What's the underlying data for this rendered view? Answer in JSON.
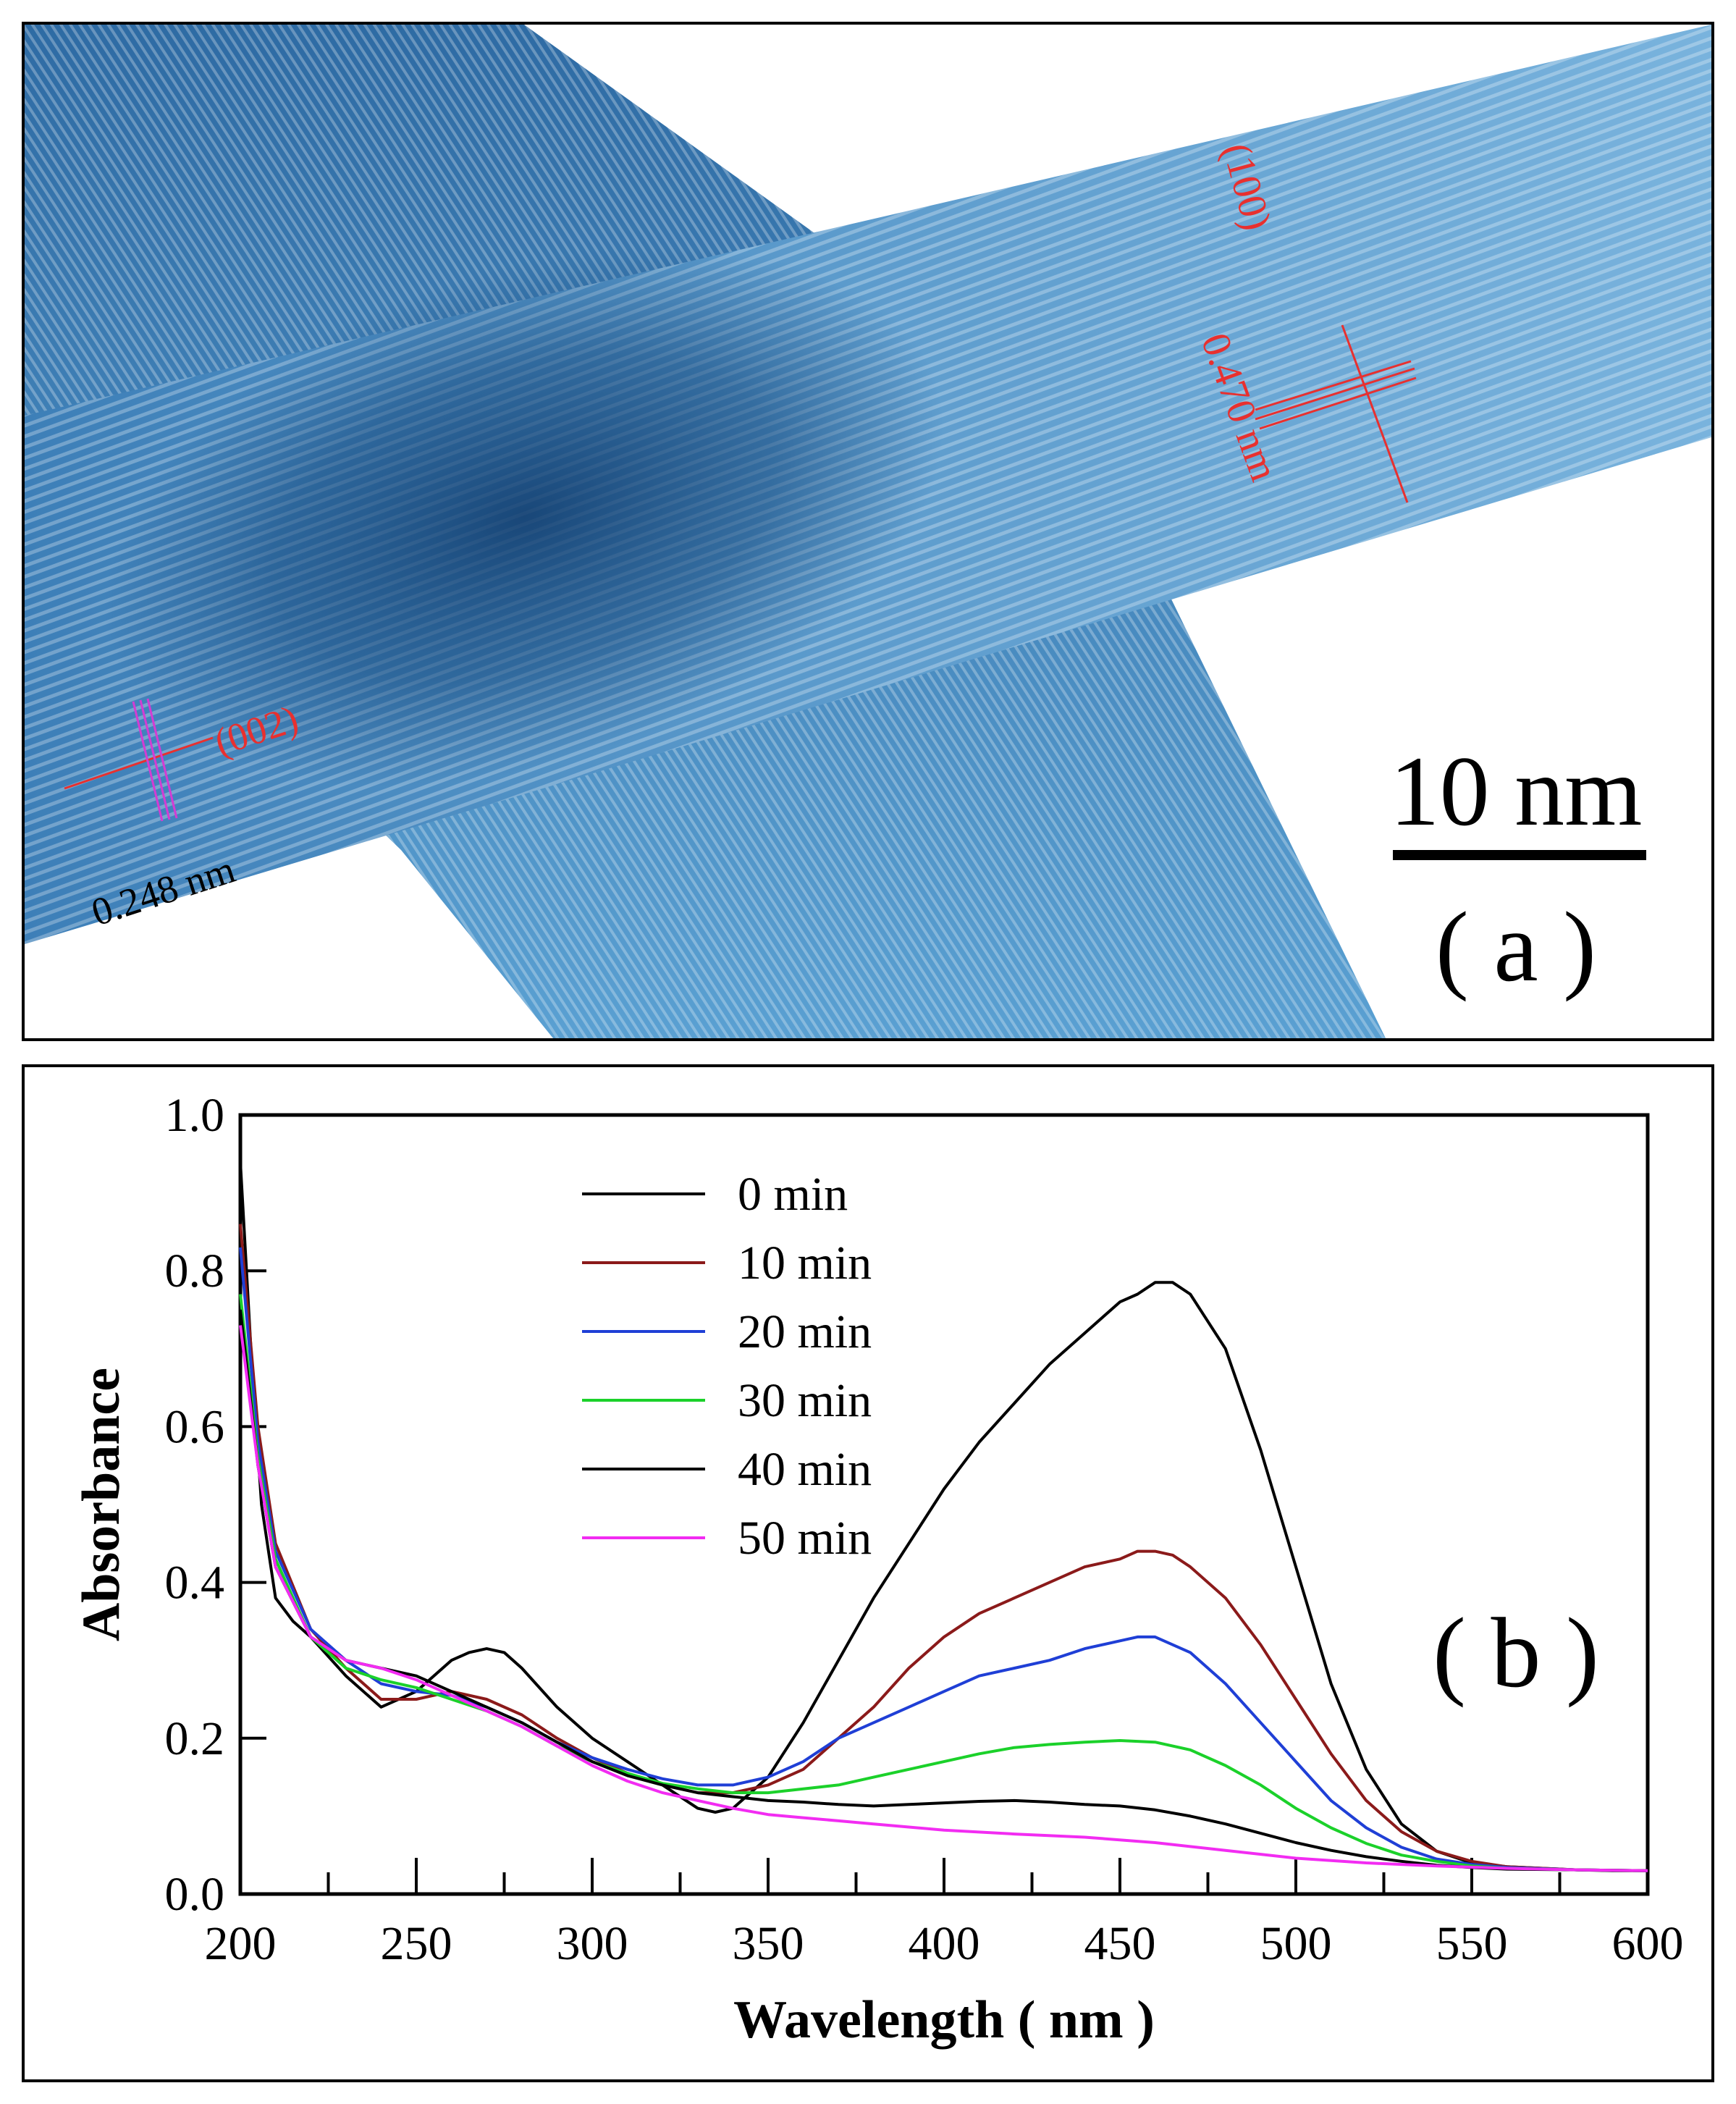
{
  "panel_a": {
    "label": "( a )",
    "scale_bar_text": "10 nm",
    "annotations": {
      "plane_100": "(100)",
      "spacing_100": "0.470 nm",
      "plane_002": "(002)",
      "spacing_002": "0.248 nm"
    },
    "colors": {
      "tem_blue": "#2f6ea6",
      "tem_light": "#8fc3e6",
      "tem_dark": "#1b4d80",
      "annotation_red": "#e8302f",
      "annotation_magenta": "#d33cd3"
    }
  },
  "chart_data": {
    "type": "line",
    "panel_label": "( b )",
    "title": "",
    "xlabel": "Wavelength ( nm )",
    "ylabel": "Absorbance",
    "xlim": [
      200,
      600
    ],
    "ylim": [
      0.0,
      1.0
    ],
    "xticks": [
      200,
      250,
      300,
      350,
      400,
      450,
      500,
      550,
      600
    ],
    "xtick_labels": [
      "200",
      "250",
      "300",
      "350",
      "400",
      "450",
      "500",
      "550",
      "600"
    ],
    "yticks": [
      0.0,
      0.2,
      0.4,
      0.6,
      0.8,
      1.0
    ],
    "ytick_labels": [
      "0.0",
      "0.2",
      "0.4",
      "0.6",
      "0.8",
      "1.0"
    ],
    "grid": false,
    "legend_position": "top-left",
    "series": [
      {
        "name": "0 min",
        "color": "#000000",
        "x": [
          200,
          203,
          206,
          210,
          215,
          220,
          230,
          240,
          250,
          260,
          265,
          270,
          275,
          280,
          290,
          300,
          310,
          320,
          330,
          335,
          340,
          350,
          360,
          370,
          380,
          390,
          400,
          410,
          420,
          430,
          440,
          450,
          455,
          460,
          465,
          470,
          480,
          490,
          500,
          510,
          520,
          530,
          540,
          550,
          560,
          570,
          580,
          590,
          600
        ],
        "y": [
          0.94,
          0.7,
          0.5,
          0.38,
          0.35,
          0.33,
          0.28,
          0.24,
          0.26,
          0.3,
          0.31,
          0.315,
          0.31,
          0.29,
          0.24,
          0.2,
          0.17,
          0.14,
          0.11,
          0.105,
          0.11,
          0.15,
          0.22,
          0.3,
          0.38,
          0.45,
          0.52,
          0.58,
          0.63,
          0.68,
          0.72,
          0.76,
          0.77,
          0.785,
          0.785,
          0.77,
          0.7,
          0.57,
          0.42,
          0.27,
          0.16,
          0.09,
          0.055,
          0.04,
          0.035,
          0.033,
          0.031,
          0.03,
          0.03
        ]
      },
      {
        "name": "10 min",
        "color": "#8b1a1a",
        "x": [
          200,
          205,
          210,
          220,
          230,
          240,
          250,
          260,
          270,
          280,
          290,
          300,
          310,
          320,
          330,
          340,
          350,
          360,
          370,
          380,
          390,
          400,
          410,
          420,
          430,
          440,
          450,
          455,
          460,
          465,
          470,
          480,
          490,
          500,
          510,
          520,
          530,
          540,
          550,
          560,
          580,
          600
        ],
        "y": [
          0.86,
          0.6,
          0.45,
          0.34,
          0.29,
          0.25,
          0.25,
          0.26,
          0.25,
          0.23,
          0.2,
          0.175,
          0.155,
          0.14,
          0.13,
          0.13,
          0.14,
          0.16,
          0.2,
          0.24,
          0.29,
          0.33,
          0.36,
          0.38,
          0.4,
          0.42,
          0.43,
          0.44,
          0.44,
          0.435,
          0.42,
          0.38,
          0.32,
          0.25,
          0.18,
          0.12,
          0.08,
          0.055,
          0.042,
          0.035,
          0.031,
          0.03
        ]
      },
      {
        "name": "20 min",
        "color": "#1f3fd6",
        "x": [
          200,
          205,
          210,
          220,
          230,
          240,
          250,
          260,
          270,
          280,
          290,
          300,
          310,
          320,
          330,
          340,
          350,
          360,
          370,
          380,
          390,
          400,
          410,
          420,
          430,
          440,
          450,
          455,
          460,
          470,
          480,
          490,
          500,
          510,
          520,
          530,
          540,
          550,
          560,
          580,
          600
        ],
        "y": [
          0.83,
          0.58,
          0.44,
          0.34,
          0.3,
          0.27,
          0.26,
          0.255,
          0.24,
          0.22,
          0.195,
          0.175,
          0.16,
          0.148,
          0.14,
          0.14,
          0.15,
          0.17,
          0.2,
          0.22,
          0.24,
          0.26,
          0.28,
          0.29,
          0.3,
          0.315,
          0.325,
          0.33,
          0.33,
          0.31,
          0.27,
          0.22,
          0.17,
          0.12,
          0.085,
          0.06,
          0.045,
          0.038,
          0.034,
          0.031,
          0.03
        ]
      },
      {
        "name": "30 min",
        "color": "#1bd12a",
        "x": [
          200,
          205,
          210,
          220,
          230,
          240,
          250,
          260,
          270,
          280,
          290,
          300,
          310,
          320,
          330,
          340,
          350,
          360,
          370,
          380,
          390,
          400,
          410,
          420,
          430,
          440,
          450,
          460,
          470,
          480,
          490,
          500,
          510,
          520,
          530,
          540,
          550,
          560,
          580,
          600
        ],
        "y": [
          0.77,
          0.56,
          0.43,
          0.33,
          0.29,
          0.275,
          0.265,
          0.25,
          0.235,
          0.215,
          0.19,
          0.17,
          0.155,
          0.142,
          0.135,
          0.13,
          0.13,
          0.135,
          0.14,
          0.15,
          0.16,
          0.17,
          0.18,
          0.188,
          0.192,
          0.195,
          0.197,
          0.195,
          0.185,
          0.165,
          0.14,
          0.11,
          0.085,
          0.065,
          0.05,
          0.042,
          0.036,
          0.033,
          0.031,
          0.03
        ]
      },
      {
        "name": "40 min",
        "color": "#000000",
        "x": [
          200,
          205,
          210,
          220,
          230,
          240,
          250,
          260,
          270,
          280,
          290,
          300,
          310,
          320,
          330,
          340,
          350,
          360,
          370,
          380,
          390,
          400,
          410,
          420,
          430,
          440,
          450,
          460,
          470,
          480,
          490,
          500,
          510,
          520,
          530,
          540,
          550,
          560,
          580,
          600
        ],
        "y": [
          0.75,
          0.55,
          0.42,
          0.33,
          0.3,
          0.29,
          0.28,
          0.26,
          0.24,
          0.22,
          0.195,
          0.17,
          0.152,
          0.14,
          0.13,
          0.125,
          0.12,
          0.118,
          0.115,
          0.113,
          0.115,
          0.117,
          0.119,
          0.12,
          0.118,
          0.115,
          0.113,
          0.108,
          0.1,
          0.09,
          0.078,
          0.066,
          0.056,
          0.048,
          0.042,
          0.037,
          0.034,
          0.032,
          0.031,
          0.03
        ]
      },
      {
        "name": "50 min",
        "color": "#f22cf2",
        "x": [
          200,
          205,
          210,
          220,
          230,
          240,
          250,
          260,
          270,
          280,
          290,
          300,
          310,
          320,
          330,
          340,
          350,
          360,
          370,
          380,
          390,
          400,
          420,
          440,
          460,
          480,
          500,
          520,
          540,
          560,
          580,
          600
        ],
        "y": [
          0.73,
          0.55,
          0.42,
          0.33,
          0.3,
          0.29,
          0.275,
          0.255,
          0.235,
          0.215,
          0.19,
          0.165,
          0.145,
          0.13,
          0.12,
          0.11,
          0.102,
          0.098,
          0.094,
          0.09,
          0.086,
          0.082,
          0.077,
          0.073,
          0.066,
          0.056,
          0.046,
          0.04,
          0.036,
          0.033,
          0.031,
          0.03
        ]
      }
    ]
  }
}
